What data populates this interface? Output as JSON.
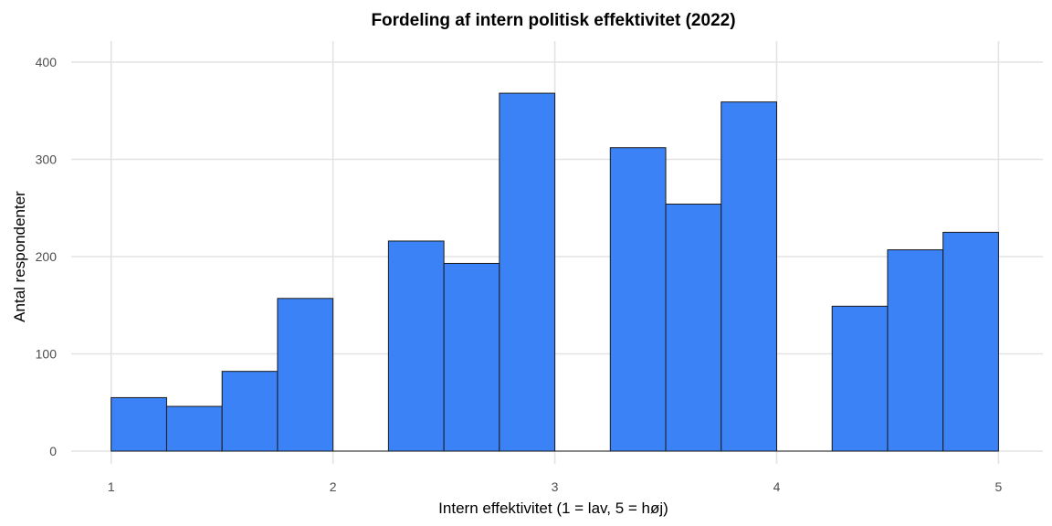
{
  "chart_data": {
    "type": "bar",
    "title": "Fordeling af intern politisk effektivitet (2022)",
    "xlabel": "Intern effektivitet (1 = lav, 5 = høj)",
    "ylabel": "Antal respondenter",
    "xlim": [
      0.82,
      5.2
    ],
    "ylim": [
      0,
      425
    ],
    "x_ticks": [
      1,
      2,
      3,
      4,
      5
    ],
    "y_ticks": [
      0,
      100,
      200,
      300,
      400
    ],
    "grid": true,
    "bar_color": "#3b82f6",
    "bar_edge_color": "#1a1a1a",
    "bins": [
      {
        "start": 1.0,
        "end": 1.25,
        "count": 55
      },
      {
        "start": 1.25,
        "end": 1.5,
        "count": 46
      },
      {
        "start": 1.5,
        "end": 1.75,
        "count": 82
      },
      {
        "start": 1.75,
        "end": 2.0,
        "count": 157
      },
      {
        "start": 2.0,
        "end": 2.25,
        "count": 0
      },
      {
        "start": 2.25,
        "end": 2.5,
        "count": 216
      },
      {
        "start": 2.5,
        "end": 2.75,
        "count": 193
      },
      {
        "start": 2.75,
        "end": 3.0,
        "count": 368
      },
      {
        "start": 3.0,
        "end": 3.25,
        "count": 0
      },
      {
        "start": 3.25,
        "end": 3.5,
        "count": 312
      },
      {
        "start": 3.5,
        "end": 3.75,
        "count": 254
      },
      {
        "start": 3.75,
        "end": 4.0,
        "count": 359
      },
      {
        "start": 4.0,
        "end": 4.25,
        "count": 0
      },
      {
        "start": 4.25,
        "end": 4.5,
        "count": 149
      },
      {
        "start": 4.5,
        "end": 4.75,
        "count": 207
      },
      {
        "start": 4.75,
        "end": 5.0,
        "count": 225
      }
    ]
  }
}
